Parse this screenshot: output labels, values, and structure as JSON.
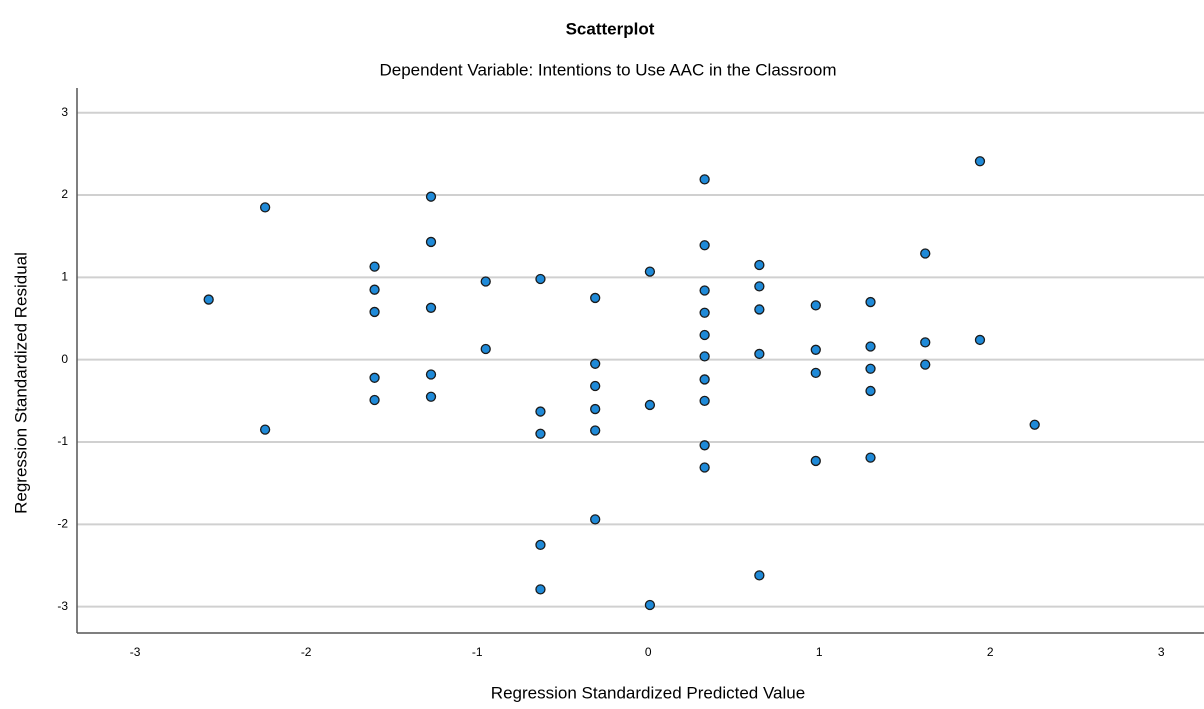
{
  "chart_data": {
    "type": "scatter",
    "title": "Scatterplot",
    "subtitle": "Dependent Variable: Intentions to Use AAC in the Classroom",
    "x_label": "Regression Standardized Predicted Value",
    "y_label": "Regression Standardized Residual",
    "color": "#1f8ad8",
    "grid": true,
    "xlim": [
      -3.34,
      3.25
    ],
    "ylim": [
      -3.32,
      3.3
    ],
    "xticks": [
      -3,
      -2,
      -1,
      0,
      1,
      2,
      3
    ],
    "yticks": [
      -3,
      -2,
      -1,
      0,
      1,
      2,
      3
    ],
    "x": [
      -2.57,
      -2.24,
      -2.24,
      -1.6,
      -1.6,
      -1.6,
      -1.6,
      -1.6,
      -1.27,
      -1.27,
      -1.27,
      -1.27,
      -1.27,
      -0.95,
      -0.95,
      -0.63,
      -0.63,
      -0.63,
      -0.63,
      -0.63,
      -0.31,
      -0.31,
      -0.31,
      -0.31,
      -0.31,
      -0.31,
      0.01,
      0.01,
      0.01,
      0.33,
      0.33,
      0.33,
      0.33,
      0.33,
      0.33,
      0.33,
      0.33,
      0.33,
      0.33,
      0.65,
      0.65,
      0.65,
      0.65,
      0.65,
      0.98,
      0.98,
      0.98,
      0.98,
      1.3,
      1.3,
      1.3,
      1.3,
      1.3,
      1.62,
      1.62,
      1.62,
      1.94,
      1.94,
      2.26
    ],
    "y": [
      0.73,
      1.85,
      -0.85,
      1.13,
      0.85,
      0.58,
      -0.22,
      -0.49,
      1.98,
      1.43,
      0.63,
      -0.18,
      -0.45,
      0.95,
      0.13,
      0.98,
      -0.63,
      -0.9,
      -2.25,
      -2.79,
      0.75,
      -0.05,
      -0.32,
      -0.6,
      -0.86,
      -1.94,
      1.07,
      -0.55,
      -2.98,
      2.19,
      1.39,
      0.84,
      0.57,
      0.3,
      0.04,
      -0.24,
      -0.5,
      -1.04,
      -1.31,
      1.15,
      0.89,
      0.61,
      0.07,
      -2.62,
      0.66,
      0.12,
      -0.16,
      -1.23,
      0.7,
      0.16,
      -0.11,
      -0.38,
      -1.19,
      1.29,
      0.21,
      -0.06,
      2.41,
      0.24,
      -0.79
    ]
  }
}
